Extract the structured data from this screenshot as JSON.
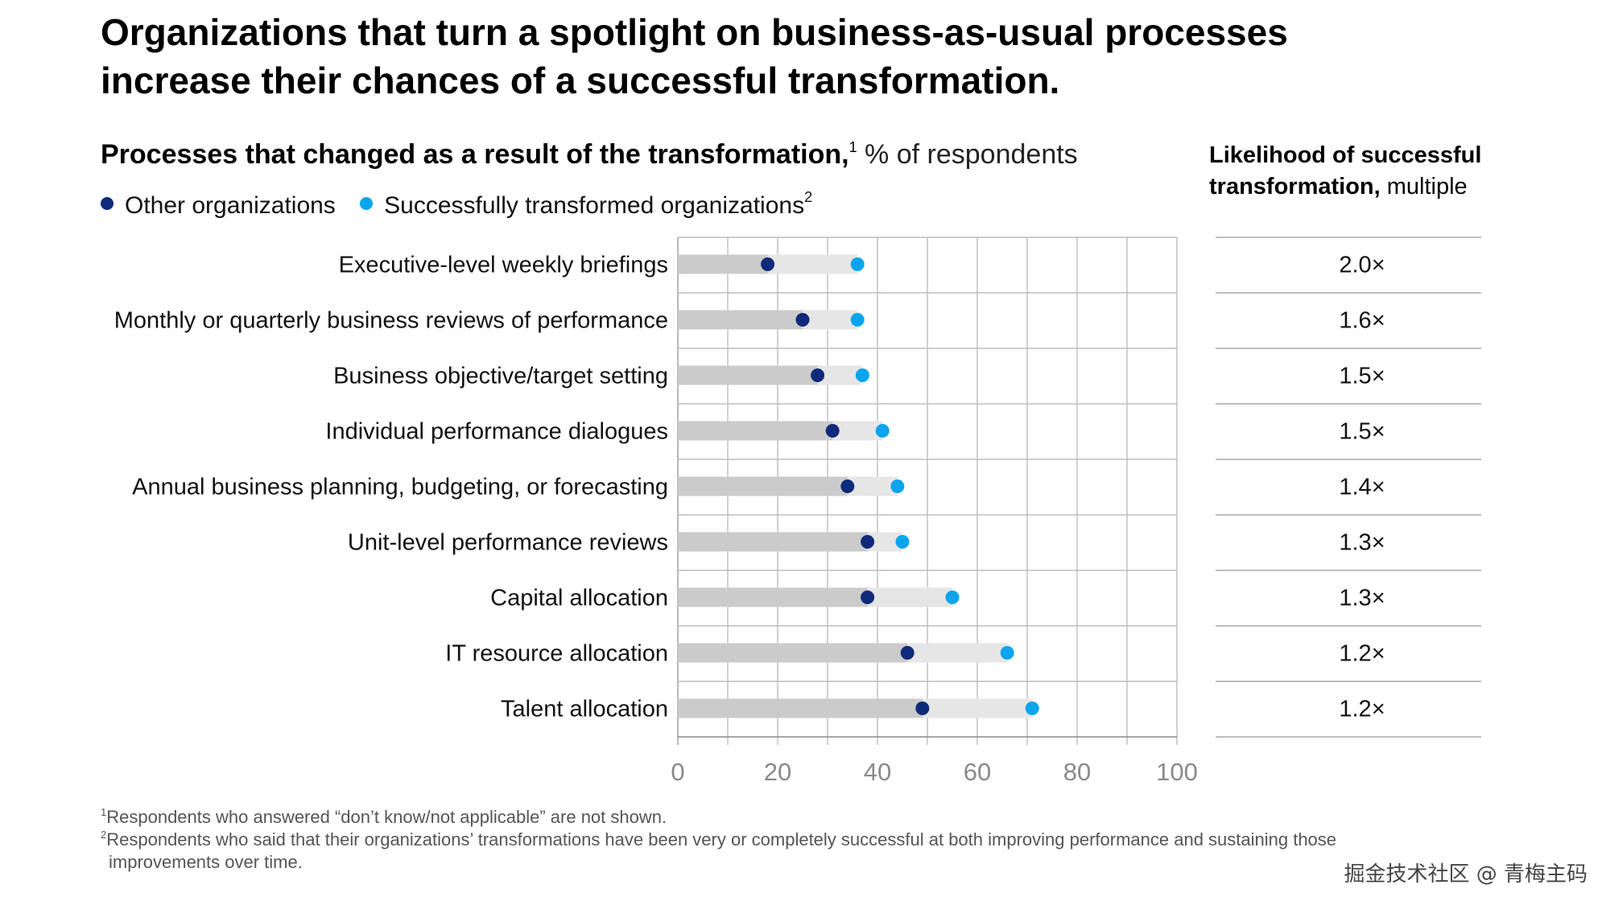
{
  "headline": "Organizations that turn a spotlight on business-as-usual processes increase their chances of a successful transformation.",
  "subtitle": {
    "bold": "Processes that changed as a result of the transformation,",
    "sup": "1",
    "unit": " % of respondents"
  },
  "legend": {
    "other": {
      "label": "Other organizations",
      "color": "#0f2a7a"
    },
    "success": {
      "label": "Successfully transformed organizations",
      "sup": "2",
      "color": "#0aa5ec"
    }
  },
  "right_heading": {
    "bold": "Likelihood of successful transformation,",
    "normal": " multiple"
  },
  "chart_data": {
    "type": "dot-range",
    "x_ticks": [
      "0",
      "20",
      "40",
      "60",
      "80",
      "100"
    ],
    "xlim": [
      0,
      100
    ],
    "grid": "vertical every 10",
    "categories": [
      "Executive-level weekly briefings",
      "Monthly or quarterly business reviews of performance",
      "Business objective/target setting",
      "Individual performance dialogues",
      "Annual business planning, budgeting, or forecasting",
      "Unit-level performance reviews",
      "Capital allocation",
      "IT resource allocation",
      "Talent allocation"
    ],
    "series": [
      {
        "name": "Other organizations",
        "color": "#0f2a7a",
        "values": [
          18,
          25,
          28,
          31,
          34,
          38,
          38,
          46,
          49
        ]
      },
      {
        "name": "Successfully transformed organizations",
        "color": "#0aa5ec",
        "values": [
          36,
          36,
          37,
          41,
          44,
          45,
          55,
          66,
          71
        ]
      }
    ],
    "multiples": [
      "2.0×",
      "1.6×",
      "1.5×",
      "1.5×",
      "1.4×",
      "1.3×",
      "1.3×",
      "1.2×",
      "1.2×"
    ]
  },
  "footnotes": {
    "fn1_sup": "1",
    "fn1": "Respondents who answered “don’t know/not applicable” are not shown.",
    "fn2_sup": "2",
    "fn2": "Respondents who said that their organizations’ transformations have been very or completely successful at both improving performance and sustaining those",
    "fn2_cont": "improvements over time."
  },
  "watermark": "掘金技术社区 @ 青梅主码"
}
